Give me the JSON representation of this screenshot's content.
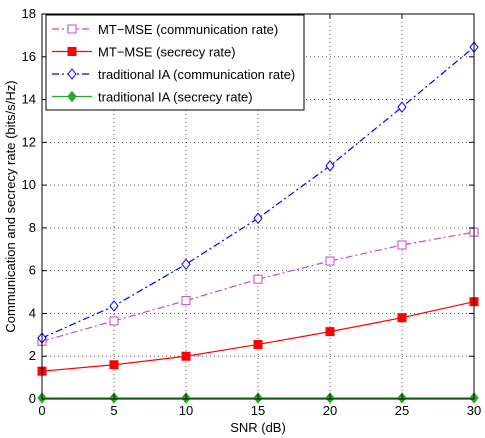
{
  "chart_data": {
    "type": "line",
    "xlabel": "SNR (dB)",
    "ylabel": "Communication and secrecy rate (bits/s/Hz)",
    "xlim": [
      0,
      30
    ],
    "ylim": [
      0,
      18
    ],
    "x_ticks": [
      0,
      5,
      10,
      15,
      20,
      25,
      30
    ],
    "y_ticks": [
      0,
      2,
      4,
      6,
      8,
      10,
      12,
      14,
      16,
      18
    ],
    "grid": true,
    "legend_position": "top-left",
    "x": [
      0,
      5,
      10,
      15,
      20,
      25,
      30
    ],
    "series": [
      {
        "name": "MT−MSE (communication rate)",
        "values": [
          2.7,
          3.65,
          4.6,
          5.6,
          6.45,
          7.2,
          7.8
        ],
        "color": "#cc44cc",
        "line_style": "dashdot",
        "marker": "square-open"
      },
      {
        "name": "MT−MSE (secrecy rate)",
        "values": [
          1.3,
          1.6,
          2.0,
          2.55,
          3.15,
          3.8,
          4.55
        ],
        "color": "#ff0000",
        "line_style": "solid",
        "marker": "square-filled"
      },
      {
        "name": "traditional IA (communication rate)",
        "values": [
          2.85,
          4.35,
          6.3,
          8.45,
          10.9,
          13.65,
          16.45
        ],
        "color": "#0000ff",
        "line_style": "dashdot",
        "marker": "diamond-open"
      },
      {
        "name": "traditional IA (secrecy rate)",
        "values": [
          0.05,
          0.05,
          0.05,
          0.05,
          0.05,
          0.05,
          0.05
        ],
        "color": "#22aa22",
        "line_style": "solid",
        "marker": "diamond-filled"
      }
    ]
  }
}
